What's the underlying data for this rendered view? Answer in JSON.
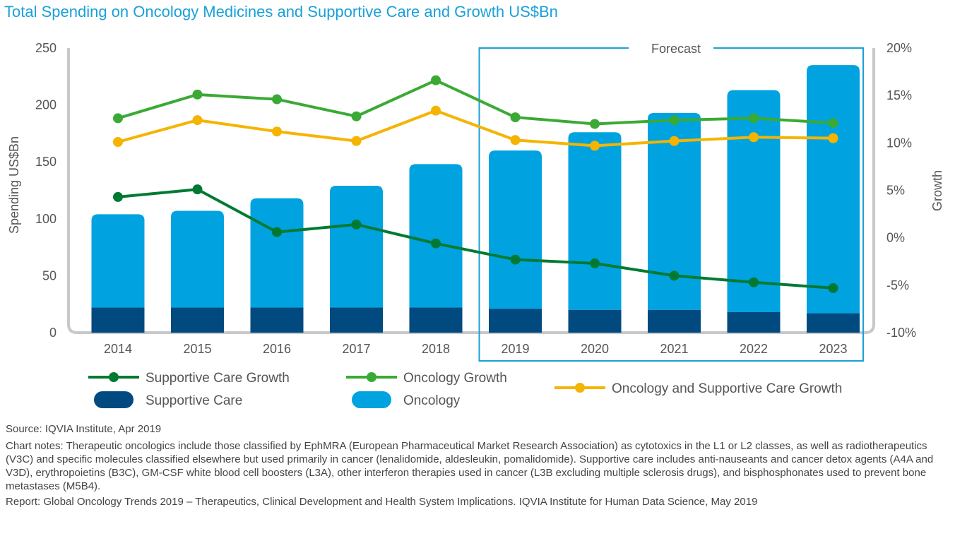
{
  "title": "Total Spending on Oncology Medicines and Supportive Care and Growth US$Bn",
  "chart_data": {
    "type": "bar",
    "categories": [
      "2014",
      "2015",
      "2016",
      "2017",
      "2018",
      "2019",
      "2020",
      "2021",
      "2022",
      "2023"
    ],
    "stacked": true,
    "forecast_label": "Forecast",
    "forecast_categories": [
      "2019",
      "2020",
      "2021",
      "2022",
      "2023"
    ],
    "ylabel_left": "Spending US$Bn",
    "ylabel_right": "Growth",
    "ylim_left": [
      0,
      250
    ],
    "yticks_left": [
      "0",
      "50",
      "100",
      "150",
      "200",
      "250"
    ],
    "ylim_right": [
      -10,
      20
    ],
    "yticks_right": [
      "-10%",
      "-5%",
      "0%",
      "5%",
      "10%",
      "15%",
      "20%"
    ],
    "bar_series": [
      {
        "name": "Supportive Care",
        "color": "#004a7f",
        "values": [
          22,
          22,
          22,
          22,
          22,
          21,
          20,
          20,
          18,
          17
        ]
      },
      {
        "name": "Oncology",
        "color": "#00a3e0",
        "values": [
          82,
          85,
          96,
          107,
          126,
          139,
          156,
          173,
          195,
          218
        ]
      }
    ],
    "line_series": [
      {
        "name": "Supportive Care Growth",
        "color": "#007a33",
        "values": [
          4.3,
          5.1,
          0.6,
          1.4,
          -0.6,
          -2.3,
          -2.7,
          -4.0,
          -4.7,
          -5.3
        ]
      },
      {
        "name": "Oncology Growth",
        "color": "#3aaa35",
        "values": [
          12.6,
          15.1,
          14.6,
          12.8,
          16.6,
          12.7,
          12.0,
          12.4,
          12.6,
          12.1
        ]
      },
      {
        "name": "Oncology and Supportive Care Growth",
        "color": "#f5b400",
        "values": [
          10.1,
          12.4,
          11.2,
          10.2,
          13.4,
          10.3,
          9.7,
          10.2,
          10.6,
          10.5
        ]
      }
    ],
    "legend_position": "bottom"
  },
  "notes": {
    "source": "Source: IQVIA Institute, Apr 2019",
    "chart_notes": "Chart notes: Therapeutic oncologics include those classified by EphMRA (European Pharmaceutical Market Research Association) as cytotoxics in the L1 or L2 classes, as well as radiotherapeutics (V3C) and specific molecules classified elsewhere but used primarily in cancer (lenalidomide, aldesleukin, pomalidomide). Supportive care includes anti-nauseants and cancer detox agents (A4A and V3D), erythropoietins (B3C), GM-CSF white blood cell boosters (L3A), other interferon therapies used in cancer (L3B excluding multiple sclerosis drugs), and bisphosphonates used to prevent bone metastases (M5B4).",
    "report": "Report: Global Oncology Trends 2019 – Therapeutics, Clinical Development and Health System Implications. IQVIA Institute for Human Data Science, May 2019"
  }
}
